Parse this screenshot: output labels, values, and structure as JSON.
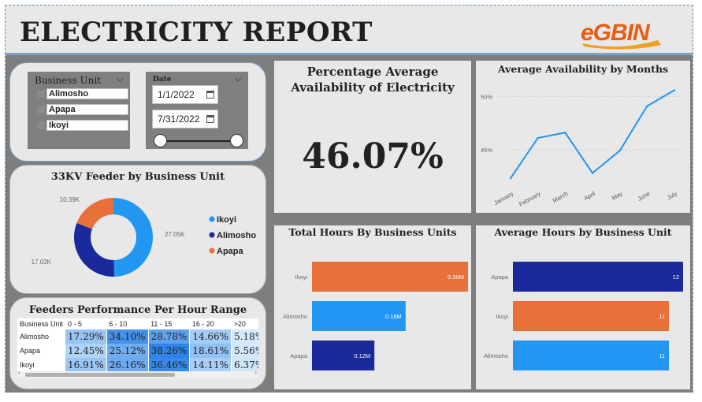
{
  "header": {
    "title": "ELECTRICITY REPORT",
    "logo_text": "eGBIN"
  },
  "filters": {
    "business_unit_label": "Business Unit",
    "business_units": [
      "Alimosho",
      "Apapa",
      "Ikoyi"
    ],
    "date_label": "Date",
    "start_date": "1/1/2022",
    "end_date": "7/31/2022"
  },
  "kpi": {
    "title_line1": "Percentage Average",
    "title_line2": "Availability of Electricity",
    "value": "46.07%"
  },
  "chart_data": [
    {
      "type": "pie",
      "variant": "donut",
      "title": "33KV Feeder by Business Unit",
      "labels": [
        "Ikoyi",
        "Alimosho",
        "Apapa"
      ],
      "values": [
        27.05,
        17.02,
        10.39
      ],
      "value_labels": [
        "27.05K",
        "17.02K",
        "10.39K"
      ],
      "colors": [
        "#2196f3",
        "#1a2a9c",
        "#e8713a"
      ],
      "legend_position": "right"
    },
    {
      "type": "line",
      "title": "Average Availability by Months",
      "x": [
        "January",
        "February",
        "March",
        "April",
        "May",
        "June",
        "July"
      ],
      "y": [
        42.3,
        46.1,
        46.6,
        42.8,
        44.9,
        49.1,
        50.6
      ],
      "ytick_labels": [
        "45%",
        "50%"
      ],
      "ylim": [
        41.5,
        51
      ],
      "color": "#2196f3",
      "grid": true
    },
    {
      "type": "bar",
      "orientation": "horizontal",
      "title": "Total Hours By Business Units",
      "categories": [
        "Ikoyi",
        "Alimosho",
        "Apapa"
      ],
      "values": [
        0.3,
        0.18,
        0.12
      ],
      "data_labels": [
        "0.30M",
        "0.18M",
        "0.12M"
      ],
      "colors": [
        "#e8713a",
        "#2196f3",
        "#1a2a9c"
      ],
      "xlim": [
        0,
        0.3
      ]
    },
    {
      "type": "bar",
      "orientation": "horizontal",
      "title": "Average Hours by Business Unit",
      "categories": [
        "Apapa",
        "Ikoyi",
        "Alimosho"
      ],
      "values": [
        12,
        11,
        11
      ],
      "data_labels": [
        "12",
        "11",
        "11"
      ],
      "colors": [
        "#1a2a9c",
        "#e8713a",
        "#2196f3"
      ],
      "xlim": [
        0,
        12
      ]
    },
    {
      "type": "table",
      "title": "Feeders Performance Per Hour Range",
      "columns": [
        "Business Unit",
        "0 - 5",
        "6 - 10",
        "11 - 15",
        "16 - 20",
        ">20"
      ],
      "rows": [
        {
          "name": "Alimosho",
          "values": [
            "17.29%",
            "34.10%",
            "28.78%",
            "14.66%",
            "5.18%"
          ]
        },
        {
          "name": "Apapa",
          "values": [
            "12.45%",
            "25.12%",
            "38.26%",
            "18.61%",
            "5.56%"
          ]
        },
        {
          "name": "Ikoyi",
          "values": [
            "16.91%",
            "26.16%",
            "36.46%",
            "14.11%",
            "6.37%"
          ]
        }
      ]
    }
  ]
}
